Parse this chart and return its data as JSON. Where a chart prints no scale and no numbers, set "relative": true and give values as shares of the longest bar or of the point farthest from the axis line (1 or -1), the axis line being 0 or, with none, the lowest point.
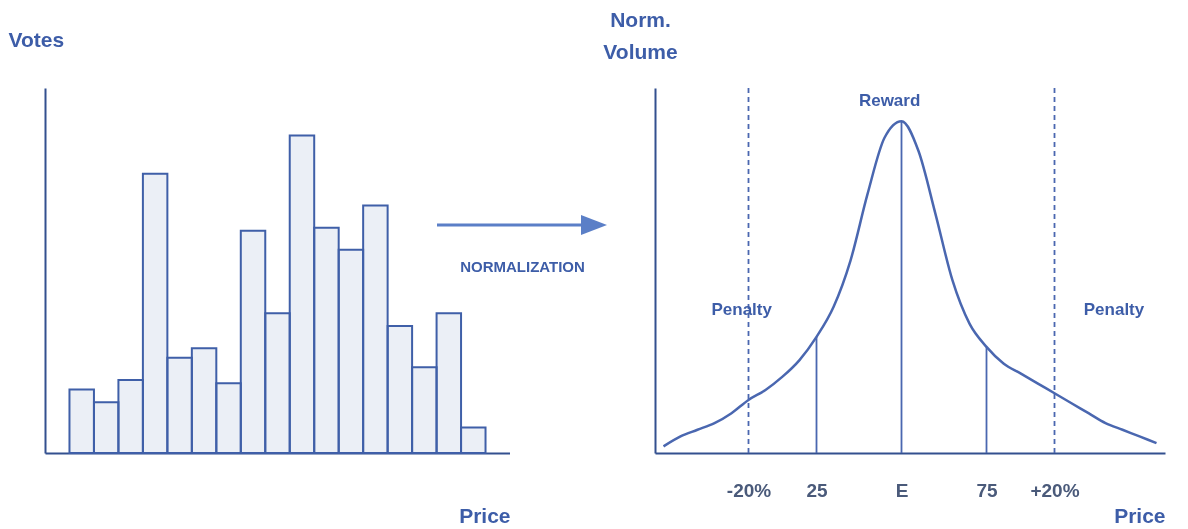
{
  "chart_data": [
    {
      "type": "bar",
      "relative": true,
      "xlabel": "Price",
      "ylabel": "Votes",
      "color": "#3f5fa8",
      "categories": [
        null,
        null,
        null,
        null,
        null,
        null,
        null,
        null,
        null,
        null,
        null,
        null,
        null,
        null,
        null,
        null,
        null
      ],
      "values": [
        0.2,
        0.16,
        0.23,
        0.88,
        0.3,
        0.33,
        0.22,
        0.7,
        0.44,
        1,
        0.71,
        0.64,
        0.78,
        0.4,
        0.27,
        0.44,
        0.08
      ],
      "annotations": [
        "NORMALIZATION"
      ]
    },
    {
      "type": "line",
      "relative": true,
      "xlabel": "Price",
      "ylabel": "Norm. Volume",
      "categories": [
        null,
        null,
        null,
        null,
        null,
        "-20%",
        null,
        null,
        null,
        "25",
        null,
        null,
        null,
        null,
        "E",
        null,
        null,
        null,
        null,
        "75",
        null,
        null,
        null,
        "+20%",
        null,
        null,
        null,
        null,
        null,
        null
      ],
      "series": [
        {
          "color": "#4a67b0",
          "values": [
            0.02,
            0.05,
            0.07,
            0.09,
            0.12,
            0.16,
            0.19,
            0.23,
            0.28,
            0.35,
            0.44,
            0.58,
            0.78,
            0.95,
            1,
            0.91,
            0.72,
            0.52,
            0.39,
            0.32,
            0.27,
            0.24,
            0.21,
            0.18,
            0.15,
            0.12,
            0.09,
            0.07,
            0.05,
            0.03
          ]
        }
      ],
      "ref_lines": [
        {
          "axis": "x",
          "value": "-20%",
          "line_style": "dashed",
          "color": "#4a67b0"
        },
        {
          "axis": "x",
          "value": "25",
          "line_style": "solid",
          "color": "#4a67b0"
        },
        {
          "axis": "x",
          "value": "E",
          "line_style": "solid",
          "color": "#4a67b0"
        },
        {
          "axis": "x",
          "value": "75",
          "line_style": "solid",
          "color": "#4a67b0"
        },
        {
          "axis": "x",
          "value": "+20%",
          "line_style": "dashed",
          "color": "#4a67b0"
        }
      ],
      "annotations": [
        "Reward",
        "Penalty",
        "Penalty"
      ]
    }
  ]
}
